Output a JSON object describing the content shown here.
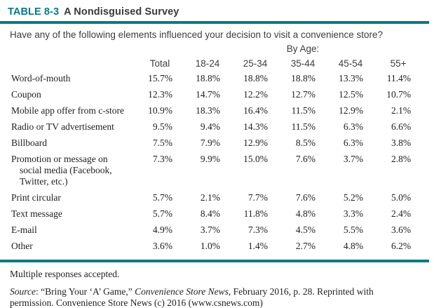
{
  "title": {
    "tag": "TABLE 8-3",
    "text": "A Nondisguised Survey"
  },
  "question": "Have any of the following elements influenced your decision to visit a convenience store?",
  "table": {
    "group_header": "By Age:",
    "columns": [
      "Total",
      "18-24",
      "25-34",
      "35-44",
      "45-54",
      "55+"
    ],
    "rows": [
      {
        "label": "Word-of-mouth",
        "values": [
          "15.7%",
          "18.8%",
          "18.8%",
          "18.8%",
          "13.3%",
          "11.4%"
        ]
      },
      {
        "label": "Coupon",
        "values": [
          "12.3%",
          "14.7%",
          "12.2%",
          "12.7%",
          "12.5%",
          "10.7%"
        ]
      },
      {
        "label": "Mobile app offer from c-store",
        "values": [
          "10.9%",
          "18.3%",
          "16.4%",
          "11.5%",
          "12.9%",
          "2.1%"
        ]
      },
      {
        "label": "Radio or TV advertisement",
        "values": [
          "9.5%",
          "9.4%",
          "14.3%",
          "11.5%",
          "6.3%",
          "6.6%"
        ]
      },
      {
        "label": "Billboard",
        "values": [
          "7.5%",
          "7.9%",
          "12.9%",
          "8.5%",
          "6.3%",
          "3.8%"
        ]
      },
      {
        "label": "Promotion or message on\nsocial media (Facebook,\nTwitter, etc.)",
        "values": [
          "7.3%",
          "9.9%",
          "15.0%",
          "7.6%",
          "3.7%",
          "2.8%"
        ]
      },
      {
        "label": "Print circular",
        "values": [
          "5.7%",
          "2.1%",
          "7.7%",
          "7.6%",
          "5.2%",
          "5.0%"
        ]
      },
      {
        "label": "Text message",
        "values": [
          "5.7%",
          "8.4%",
          "11.8%",
          "4.8%",
          "3.3%",
          "2.4%"
        ]
      },
      {
        "label": "E-mail",
        "values": [
          "4.9%",
          "3.7%",
          "7.3%",
          "4.5%",
          "5.5%",
          "3.6%"
        ]
      },
      {
        "label": "Other",
        "values": [
          "3.6%",
          "1.0%",
          "1.4%",
          "2.7%",
          "4.8%",
          "6.2%"
        ]
      }
    ]
  },
  "notes": {
    "note": "Multiple responses accepted.",
    "source_prefix": "Source",
    "source_seg1": ": “Bring Your ‘A’ Game,” ",
    "source_title_italic": "Convenience Store News,",
    "source_seg2": " February 2016, p. 28. Reprinted with permission. Convenience Store News (c) 2016 (www.csnews.com)"
  },
  "colors": {
    "accent_teal": "#077a85"
  }
}
